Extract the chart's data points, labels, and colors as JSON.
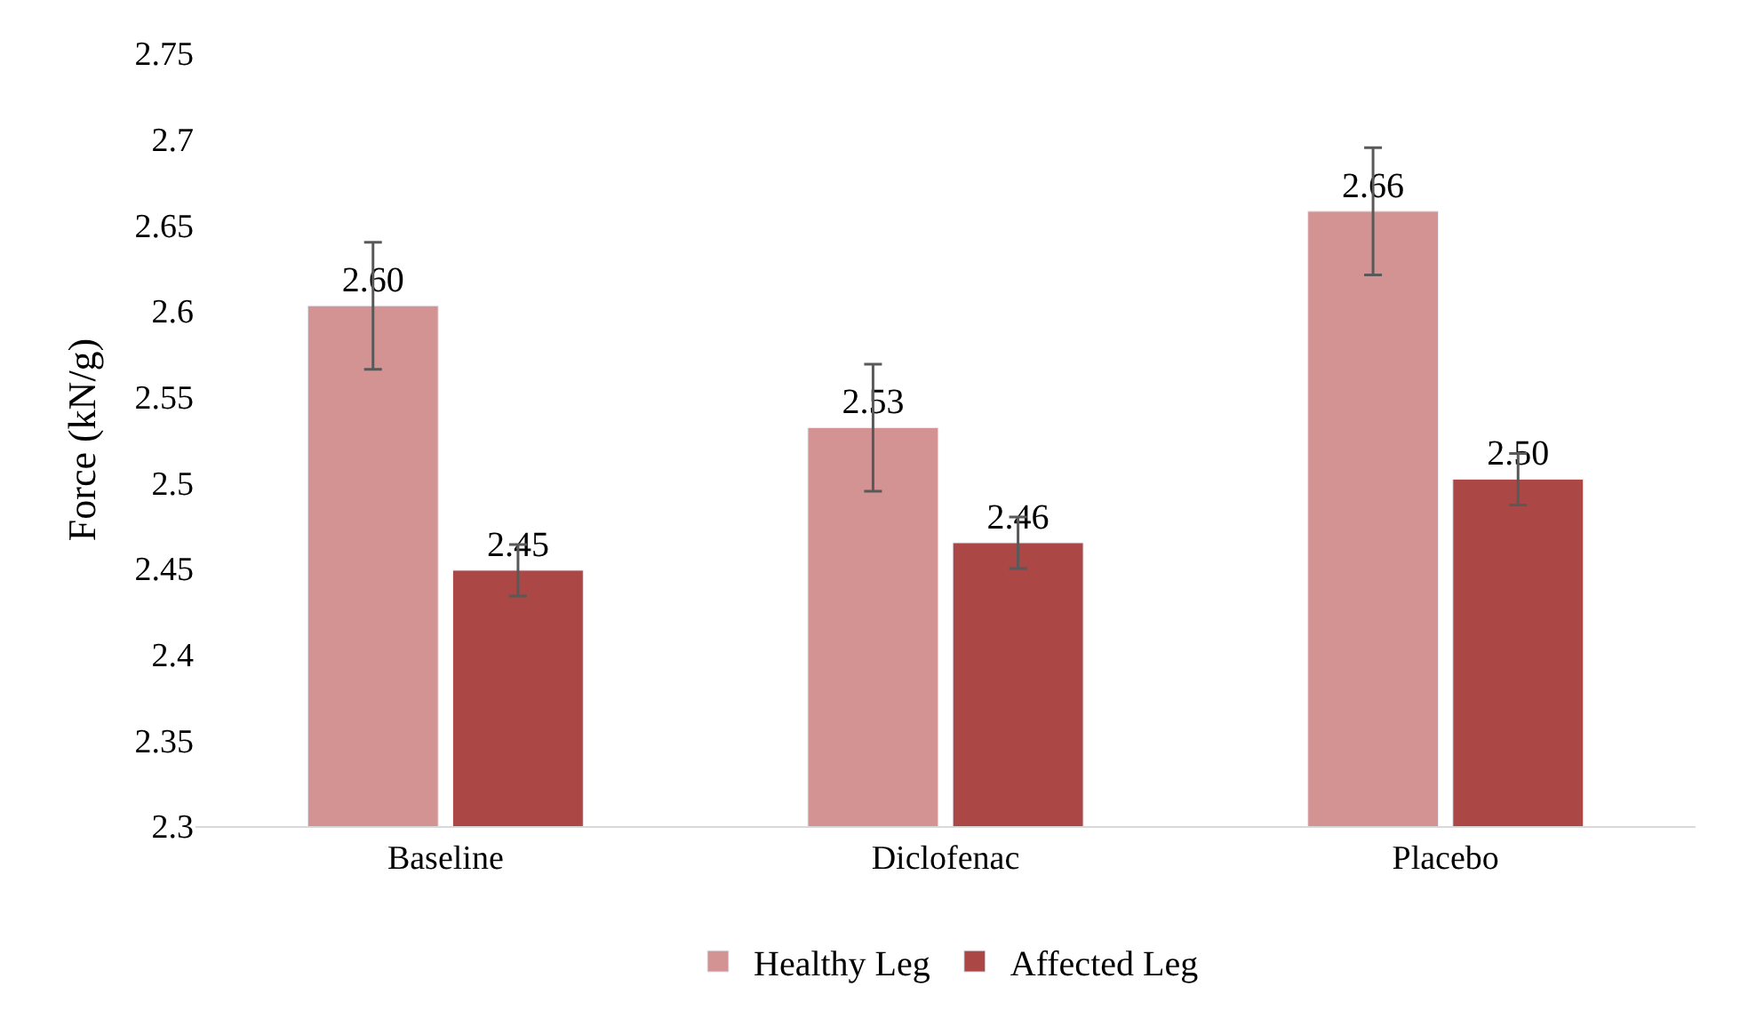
{
  "chart_data": {
    "type": "bar",
    "ylabel": "Force (kN/g)",
    "categories": [
      "Baseline",
      "Diclofenac",
      "Placebo"
    ],
    "series": [
      {
        "name": "Healthy Leg",
        "color": "#d39393",
        "values": [
          2.603,
          2.532,
          2.658
        ],
        "errors": [
          0.037,
          0.037,
          0.037
        ],
        "value_labels": [
          "2.60",
          "2.53",
          "2.66"
        ]
      },
      {
        "name": "Affected Leg",
        "color": "#ab4745",
        "values": [
          2.449,
          2.465,
          2.502
        ],
        "errors": [
          0.015,
          0.015,
          0.015
        ],
        "value_labels": [
          "2.45",
          "2.46",
          "2.50"
        ]
      }
    ],
    "ylim": [
      2.3,
      2.75
    ],
    "yticks": [
      2.3,
      2.35,
      2.4,
      2.45,
      2.5,
      2.55,
      2.6,
      2.65,
      2.7,
      2.75
    ],
    "grid": false,
    "legend": "bottom"
  }
}
